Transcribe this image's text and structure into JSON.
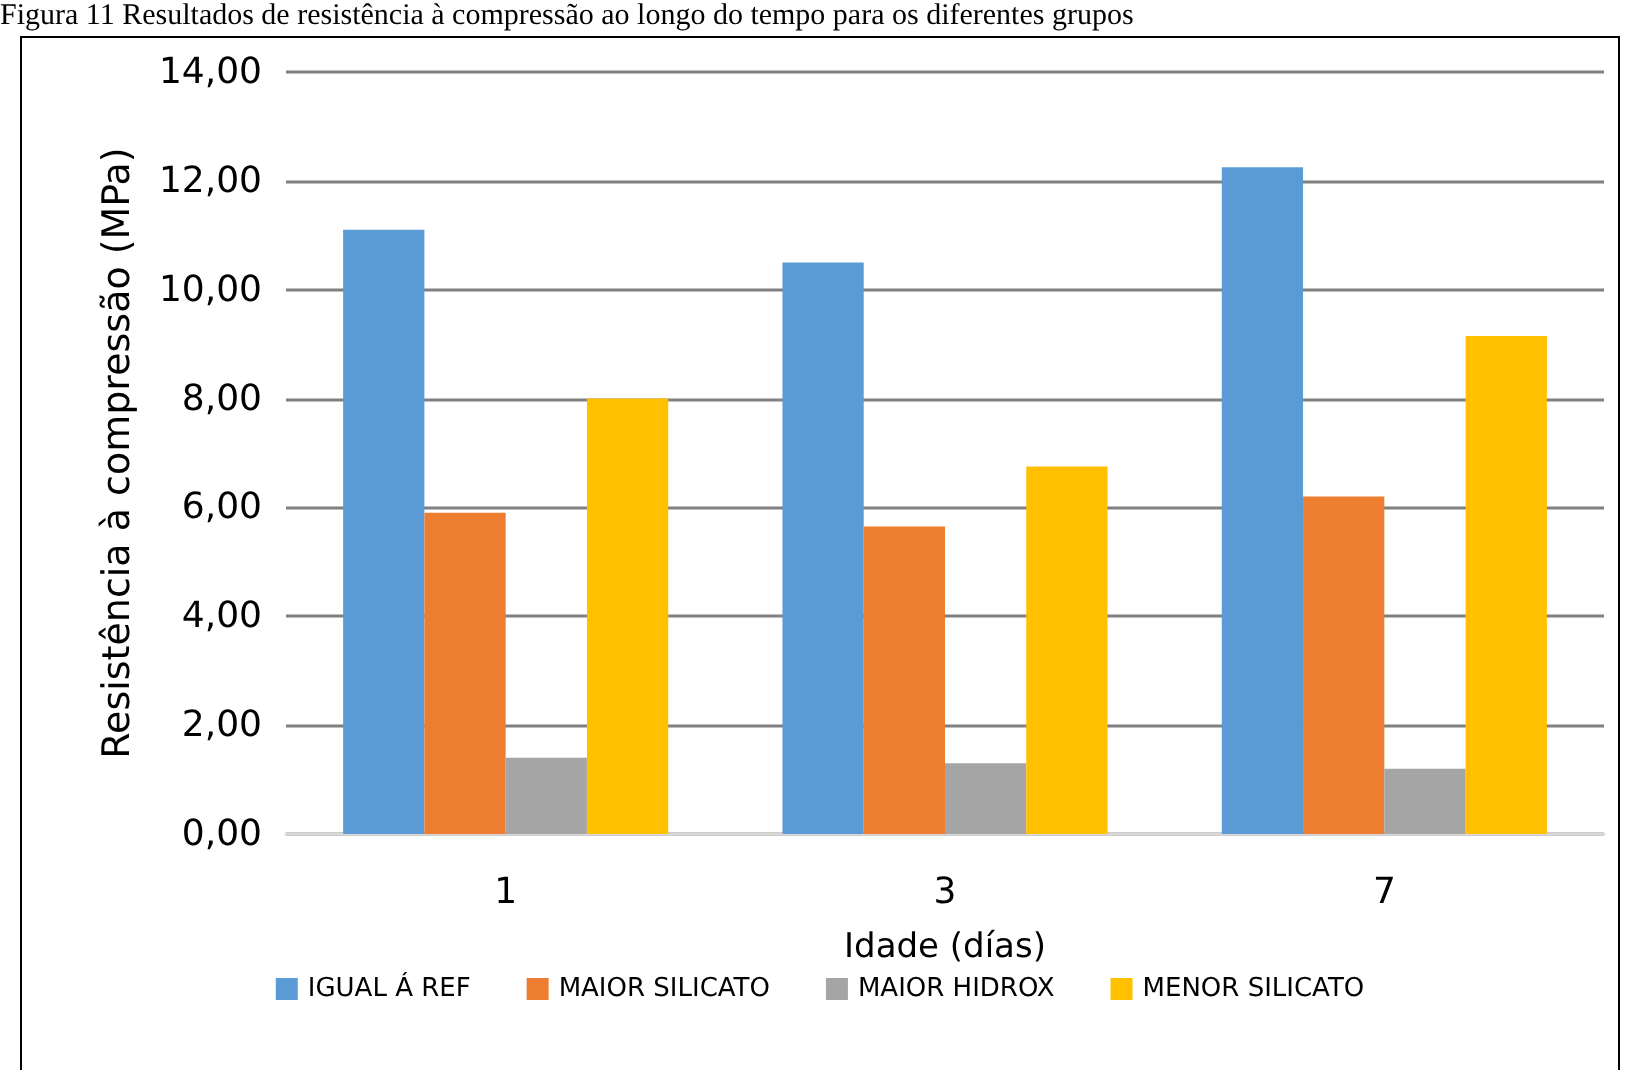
{
  "chart_data": {
    "type": "bar",
    "title": "Figura 11 Resultados de resistência à compressão ao longo do tempo para os diferentes grupos",
    "xlabel": "Idade (días)",
    "ylabel": "Resistência à compressão (MPa)",
    "categories": [
      "1",
      "3",
      "7"
    ],
    "series": [
      {
        "name": "IGUAL Á REF",
        "color": "#5b9bd5",
        "values": [
          11.1,
          10.5,
          12.25
        ]
      },
      {
        "name": "MAIOR SILICATO",
        "color": "#ed7d31",
        "values": [
          5.9,
          5.65,
          6.2
        ]
      },
      {
        "name": "MAIOR HIDROX",
        "color": "#a5a5a5",
        "values": [
          1.4,
          1.3,
          1.2
        ]
      },
      {
        "name": "MENOR SILICATO",
        "color": "#ffc000",
        "values": [
          8.0,
          6.75,
          9.15
        ]
      }
    ],
    "ylim": [
      0,
      14
    ],
    "yticks": [
      {
        "value": 0,
        "label": "0,00"
      },
      {
        "value": 2,
        "label": "2,00"
      },
      {
        "value": 4,
        "label": "4,00"
      },
      {
        "value": 6,
        "label": "6,00"
      },
      {
        "value": 8,
        "label": "8,00"
      },
      {
        "value": 10,
        "label": "10,00"
      },
      {
        "value": 12,
        "label": "12,00"
      },
      {
        "value": 14,
        "label": "14,00"
      }
    ],
    "grid": "y",
    "legend": "bottom"
  }
}
